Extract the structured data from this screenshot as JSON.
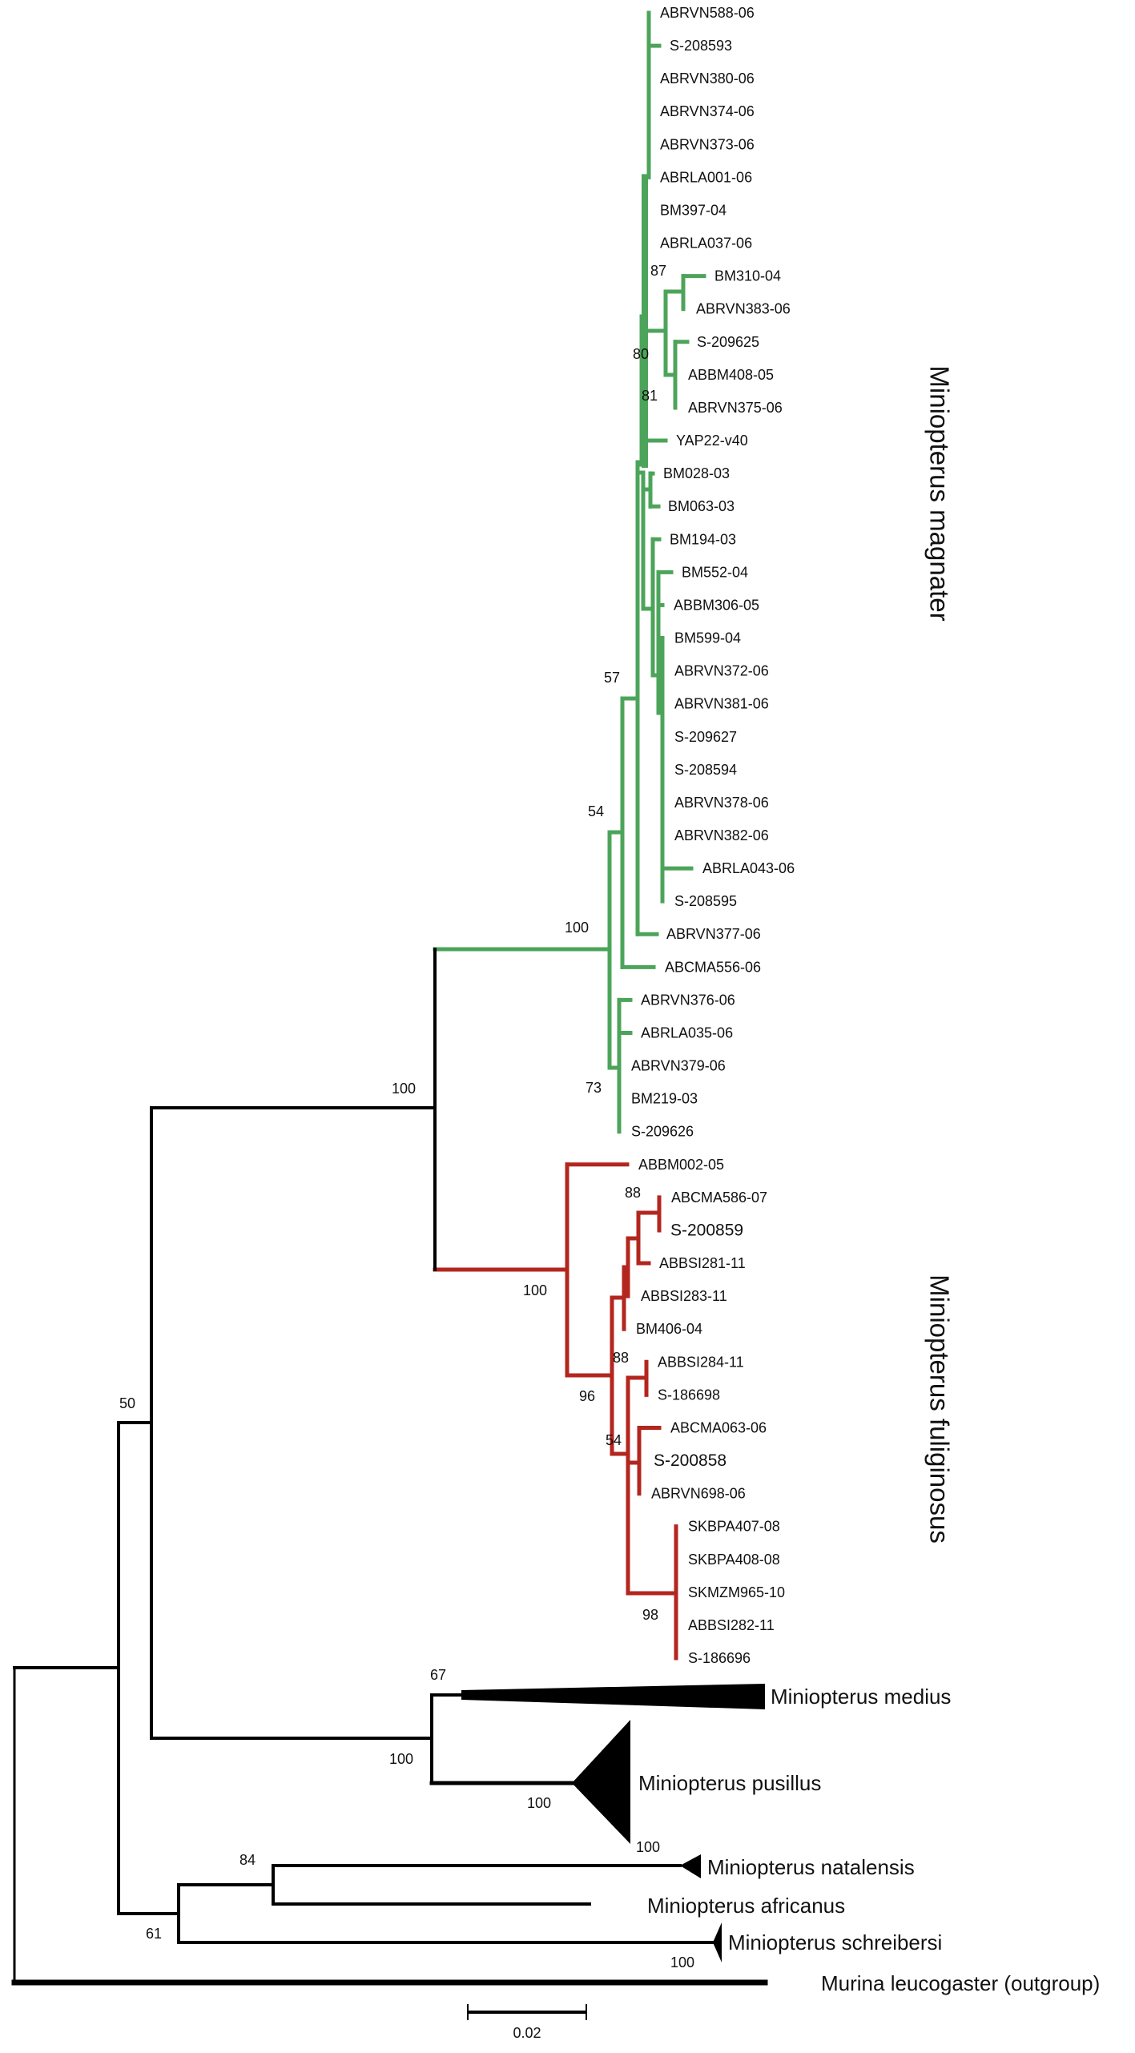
{
  "colors": {
    "magnater": "#4ca45a",
    "fuliginosus": "#b3261e",
    "highlight": "#e3221b",
    "other": "#000000"
  },
  "leaves": [
    {
      "name": "ABRVN588-06",
      "group": "magnater"
    },
    {
      "name": "S-208593",
      "group": "magnater"
    },
    {
      "name": "ABRVN380-06",
      "group": "magnater"
    },
    {
      "name": "ABRVN374-06",
      "group": "magnater"
    },
    {
      "name": "ABRVN373-06",
      "group": "magnater"
    },
    {
      "name": "ABRLA001-06",
      "group": "magnater"
    },
    {
      "name": "BM397-04",
      "group": "magnater"
    },
    {
      "name": "ABRLA037-06",
      "group": "magnater"
    },
    {
      "name": "BM310-04",
      "group": "magnater"
    },
    {
      "name": "ABRVN383-06",
      "group": "magnater"
    },
    {
      "name": "S-209625",
      "group": "magnater"
    },
    {
      "name": "ABBM408-05",
      "group": "magnater"
    },
    {
      "name": "ABRVN375-06",
      "group": "magnater"
    },
    {
      "name": "YAP22-v40",
      "group": "magnater"
    },
    {
      "name": "BM028-03",
      "group": "magnater"
    },
    {
      "name": "BM063-03",
      "group": "magnater"
    },
    {
      "name": "BM194-03",
      "group": "magnater"
    },
    {
      "name": "BM552-04",
      "group": "magnater"
    },
    {
      "name": "ABBM306-05",
      "group": "magnater"
    },
    {
      "name": "BM599-04",
      "group": "magnater"
    },
    {
      "name": "ABRVN372-06",
      "group": "magnater"
    },
    {
      "name": "ABRVN381-06",
      "group": "magnater"
    },
    {
      "name": "S-209627",
      "group": "magnater"
    },
    {
      "name": "S-208594",
      "group": "magnater"
    },
    {
      "name": "ABRVN378-06",
      "group": "magnater"
    },
    {
      "name": "ABRVN382-06",
      "group": "magnater"
    },
    {
      "name": "ABRLA043-06",
      "group": "magnater"
    },
    {
      "name": "S-208595",
      "group": "magnater"
    },
    {
      "name": "ABRVN377-06",
      "group": "magnater"
    },
    {
      "name": "ABCMA556-06",
      "group": "magnater"
    },
    {
      "name": "ABRVN376-06",
      "group": "magnater"
    },
    {
      "name": "ABRLA035-06",
      "group": "magnater"
    },
    {
      "name": "ABRVN379-06",
      "group": "magnater"
    },
    {
      "name": "BM219-03",
      "group": "magnater"
    },
    {
      "name": "S-209626",
      "group": "magnater"
    },
    {
      "name": "ABBM002-05",
      "group": "fuliginosus"
    },
    {
      "name": "ABCMA586-07",
      "group": "fuliginosus"
    },
    {
      "name": "S-200859",
      "group": "fuliginosus",
      "highlight": true
    },
    {
      "name": "ABBSI281-11",
      "group": "fuliginosus"
    },
    {
      "name": "ABBSI283-11",
      "group": "fuliginosus"
    },
    {
      "name": "BM406-04",
      "group": "fuliginosus"
    },
    {
      "name": "ABBSI284-11",
      "group": "fuliginosus"
    },
    {
      "name": "S-186698",
      "group": "fuliginosus"
    },
    {
      "name": "ABCMA063-06",
      "group": "fuliginosus"
    },
    {
      "name": "S-200858",
      "group": "fuliginosus",
      "highlight": true
    },
    {
      "name": "ABRVN698-06",
      "group": "fuliginosus"
    },
    {
      "name": "SKBPA407-08",
      "group": "fuliginosus"
    },
    {
      "name": "SKBPA408-08",
      "group": "fuliginosus"
    },
    {
      "name": "SKMZM965-10",
      "group": "fuliginosus"
    },
    {
      "name": "ABBSI282-11",
      "group": "fuliginosus"
    },
    {
      "name": "S-186696",
      "group": "fuliginosus"
    }
  ],
  "clade_labels": {
    "magnater": "Miniopterus magnater",
    "fuliginosus": "Miniopterus fuliginosus"
  },
  "collapsed_clades": {
    "medius": "Miniopterus medius",
    "pusillus": "Miniopterus pusillus",
    "natalensis": "Miniopterus natalensis",
    "africanus": "Miniopterus africanus",
    "schreibersi": "Miniopterus schreibersi",
    "outgroup": "Murina leucogaster (outgroup)"
  },
  "bootstrap": {
    "magnater": [
      "87",
      "80",
      "81",
      "57",
      "54",
      "100",
      "73"
    ],
    "fuliginosus": [
      "100",
      "88",
      "88",
      "96",
      "54",
      "98"
    ],
    "backbone": [
      "100",
      "50",
      "67",
      "100",
      "100",
      "100",
      "84",
      "61",
      "100"
    ]
  },
  "scale_bar": {
    "label": "0.02",
    "value": 0.02
  }
}
